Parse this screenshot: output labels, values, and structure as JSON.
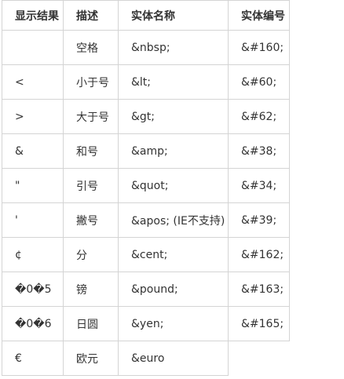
{
  "table": {
    "headers": [
      "显示结果",
      "描述",
      "实体名称",
      "实体编号"
    ],
    "rows": [
      {
        "result": " ",
        "desc": "空格",
        "name": "&nbsp;",
        "number": "&#160;"
      },
      {
        "result": "<",
        "desc": "小于号",
        "name": "&lt;",
        "number": "&#60;"
      },
      {
        "result": ">",
        "desc": "大于号",
        "name": "&gt;",
        "number": "&#62;"
      },
      {
        "result": "&",
        "desc": "和号",
        "name": "&amp;",
        "number": "&#38;"
      },
      {
        "result": "\"",
        "desc": "引号",
        "name": "&quot;",
        "number": "&#34;"
      },
      {
        "result": "'",
        "desc": "撇号",
        "name": "&apos; (IE不支持)",
        "number": "&#39;"
      },
      {
        "result": "¢",
        "desc": "分",
        "name": "&cent;",
        "number": "&#162;"
      },
      {
        "result": "�0�5",
        "desc": "镑",
        "name": "&pound;",
        "number": "&#163;"
      },
      {
        "result": "�0�6",
        "desc": "日圆",
        "name": "&yen;",
        "number": "&#165;"
      },
      {
        "result": "€",
        "desc": "欧元",
        "name": "&euro",
        "number": null
      }
    ]
  }
}
